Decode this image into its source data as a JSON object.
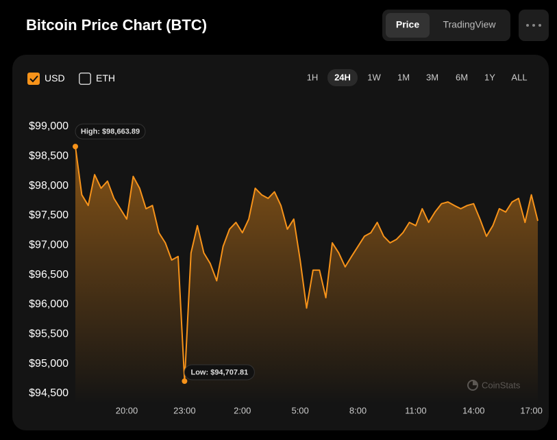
{
  "header": {
    "title": "Bitcoin Price Chart (BTC)",
    "tabs": [
      "Price",
      "TradingView"
    ],
    "active_tab": 0
  },
  "toolbar": {
    "currencies": [
      {
        "label": "USD",
        "checked": true
      },
      {
        "label": "ETH",
        "checked": false
      }
    ],
    "ranges": [
      "1H",
      "24H",
      "1W",
      "1M",
      "3M",
      "6M",
      "1Y",
      "ALL"
    ],
    "active_range": 1
  },
  "watermark": "CoinStats",
  "chart_data": {
    "type": "line",
    "color": "#f7931a",
    "categories": [
      null,
      null,
      null,
      null,
      null,
      null,
      null,
      null,
      "20:00",
      null,
      null,
      null,
      null,
      null,
      null,
      null,
      null,
      "23:00",
      null,
      null,
      null,
      null,
      null,
      null,
      null,
      null,
      "2:00",
      null,
      null,
      null,
      null,
      null,
      null,
      null,
      null,
      "5:00",
      null,
      null,
      null,
      null,
      null,
      null,
      null,
      null,
      "8:00",
      null,
      null,
      null,
      null,
      null,
      null,
      null,
      null,
      "11:00",
      null,
      null,
      null,
      null,
      null,
      null,
      null,
      null,
      "14:00",
      null,
      null,
      null,
      null,
      null,
      null,
      null,
      null,
      "17:00",
      null
    ],
    "values": [
      98663.89,
      97850,
      97670,
      98190,
      97960,
      98080,
      97790,
      97615,
      97440,
      98160,
      97960,
      97615,
      97670,
      97210,
      97040,
      96750,
      96810,
      94707.81,
      96870,
      97330,
      96870,
      96690,
      96400,
      96980,
      97270,
      97385,
      97210,
      97440,
      97960,
      97850,
      97790,
      97900,
      97670,
      97270,
      97440,
      96750,
      95940,
      96580,
      96580,
      96115,
      97040,
      96870,
      96635,
      96810,
      96980,
      97150,
      97210,
      97385,
      97150,
      97040,
      97100,
      97210,
      97385,
      97330,
      97615,
      97385,
      97560,
      97700,
      97730,
      97670,
      97615,
      97670,
      97700,
      97440,
      97150,
      97330,
      97615,
      97560,
      97730,
      97790,
      97385,
      97850,
      97410
    ],
    "annotations": [
      {
        "text": "High: $98,663.89",
        "index": 0
      },
      {
        "text": "Low: $94,707.81",
        "index": 17
      }
    ],
    "ylim": [
      94500,
      99000
    ],
    "yticks": [
      {
        "value": 99000,
        "label": "$99,000"
      },
      {
        "value": 98500,
        "label": "$98,500"
      },
      {
        "value": 98000,
        "label": "$98,000"
      },
      {
        "value": 97500,
        "label": "$97,500"
      },
      {
        "value": 97000,
        "label": "$97,000"
      },
      {
        "value": 96500,
        "label": "$96,500"
      },
      {
        "value": 96000,
        "label": "$96,000"
      },
      {
        "value": 95500,
        "label": "$95,500"
      },
      {
        "value": 95000,
        "label": "$95,000"
      },
      {
        "value": 94500,
        "label": "$94,500"
      }
    ],
    "grid": false
  }
}
